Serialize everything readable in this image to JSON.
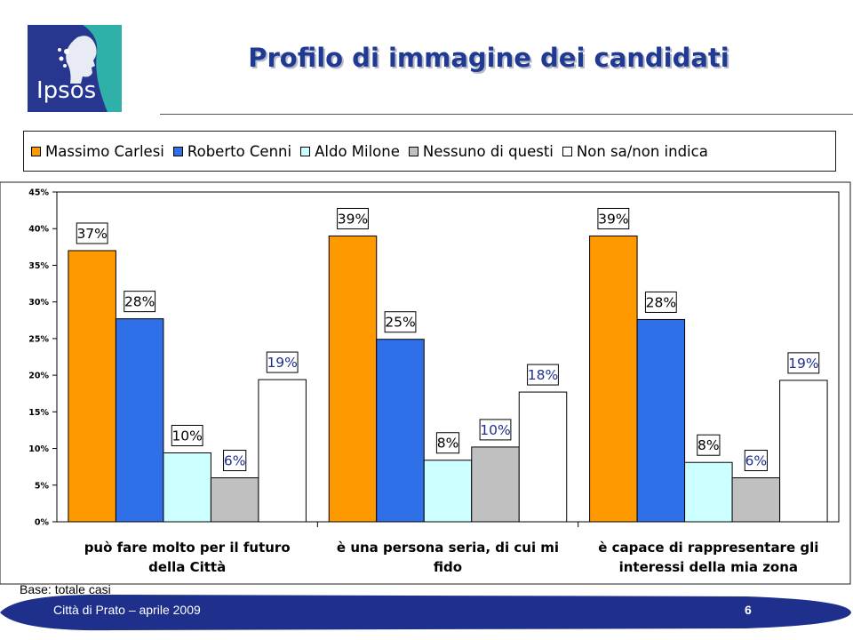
{
  "brand": {
    "name": "Ipsos",
    "teal": "#2fb0a8",
    "blue": "#27368f"
  },
  "title": "Profilo di immagine dei candidati",
  "base_note": "Base: totale casi",
  "footer": {
    "text": "Città di Prato – aprile 2009",
    "page": "6",
    "color": "#1e2f8c"
  },
  "chart_data": {
    "type": "bar",
    "title": "",
    "xlabel": "",
    "ylabel": "",
    "ylim": [
      0,
      45
    ],
    "yticks": [
      0,
      5,
      10,
      15,
      20,
      25,
      30,
      35,
      40,
      45
    ],
    "ytick_labels": [
      "0%",
      "5%",
      "10%",
      "15%",
      "20%",
      "25%",
      "30%",
      "35%",
      "40%",
      "45%"
    ],
    "legend_position": "top",
    "grid": false,
    "categories": [
      [
        "può fare molto per il futuro",
        "della Città"
      ],
      [
        "è una persona seria, di cui mi",
        "fido"
      ],
      [
        "è capace di rappresentare gli",
        "interessi della mia zona"
      ]
    ],
    "series": [
      {
        "name": "Massimo Carlesi",
        "color": "#ff9900",
        "values": [
          37,
          39,
          39
        ],
        "labels": [
          "37%",
          "39%",
          "39%"
        ],
        "plotted": [
          37,
          39,
          39
        ]
      },
      {
        "name": "Roberto Cenni",
        "color": "#2f6fe8",
        "values": [
          28,
          25,
          28
        ],
        "labels": [
          "28%",
          "25%",
          "28%"
        ],
        "plotted": [
          27.7,
          24.9,
          27.6
        ]
      },
      {
        "name": "Aldo Milone",
        "color": "#ccffff",
        "values": [
          10,
          8,
          8
        ],
        "labels": [
          "10%",
          "8%",
          "8%"
        ],
        "plotted": [
          9.4,
          8.4,
          8.1
        ]
      },
      {
        "name": "Nessuno di questi",
        "color": "#c0c0c0",
        "values": [
          6,
          10,
          6
        ],
        "labels": [
          "6%",
          "10%",
          "6%"
        ],
        "plotted": [
          6,
          10.2,
          6
        ]
      },
      {
        "name": "Non sa/non indica",
        "color": "#ffffff",
        "values": [
          19,
          18,
          19
        ],
        "labels": [
          "19%",
          "18%",
          "19%"
        ],
        "plotted": [
          19.4,
          17.7,
          19.3
        ]
      }
    ],
    "label_color_by_series": [
      "#000000",
      "#000000",
      "#000000",
      "#1f2f8f",
      "#1f2f8f"
    ]
  }
}
